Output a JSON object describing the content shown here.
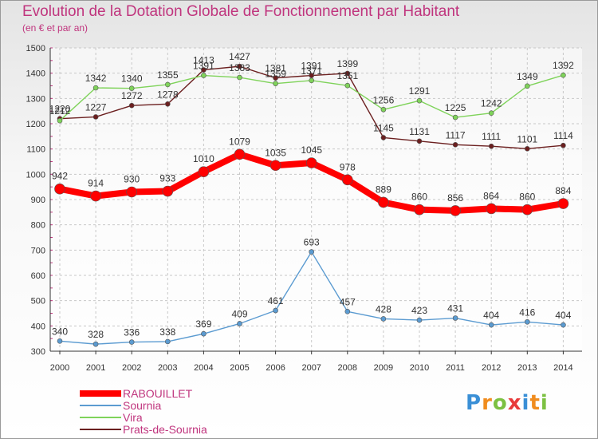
{
  "chart_data": {
    "type": "line",
    "title": "Evolution de la Dotation Globale de Fonctionnement par Habitant",
    "subtitle": "(en € et par an)",
    "xlabel": "",
    "ylabel": "",
    "ylim": [
      300,
      1500
    ],
    "yticks": [
      300,
      400,
      500,
      600,
      700,
      800,
      900,
      1000,
      1100,
      1200,
      1300,
      1400,
      1500
    ],
    "grid": true,
    "legend_position": "bottom-left",
    "x": [
      "2000",
      "2001",
      "2002",
      "2003",
      "2004",
      "2005",
      "2006",
      "2007",
      "2008",
      "2009",
      "2010",
      "2011",
      "2012",
      "2013",
      "2014"
    ],
    "series": [
      {
        "name": "Prats-de-Sournia",
        "color": "#6b1f1f",
        "values": [
          1220,
          1227,
          1272,
          1278,
          1413,
          1427,
          1381,
          1391,
          1399,
          1145,
          1131,
          1117,
          1111,
          1101,
          1114
        ]
      },
      {
        "name": "Vira",
        "color": "#7fd35a",
        "values": [
          1212,
          1342,
          1340,
          1355,
          1391,
          1383,
          1359,
          1371,
          1351,
          1256,
          1291,
          1225,
          1242,
          1349,
          1392
        ]
      },
      {
        "name": "Sournia",
        "color": "#5b9bd1",
        "values": [
          340,
          328,
          336,
          338,
          369,
          409,
          461,
          693,
          457,
          428,
          423,
          431,
          404,
          416,
          404
        ]
      },
      {
        "name": "RABOUILLET",
        "color": "#ff0000",
        "values": [
          942,
          914,
          930,
          933,
          1010,
          1079,
          1035,
          1045,
          978,
          889,
          860,
          856,
          864,
          860,
          884
        ]
      }
    ],
    "legend_order": [
      "RABOUILLET",
      "Sournia",
      "Vira",
      "Prats-de-Sournia"
    ]
  },
  "logo": {
    "letters": [
      "P",
      "r",
      "o",
      "x",
      "i",
      "t",
      "i"
    ],
    "colors": [
      "#3a8fd6",
      "#f08c1e",
      "#7cc142",
      "#e83b3b",
      "#3a8fd6",
      "#f08c1e",
      "#7cc142"
    ]
  }
}
